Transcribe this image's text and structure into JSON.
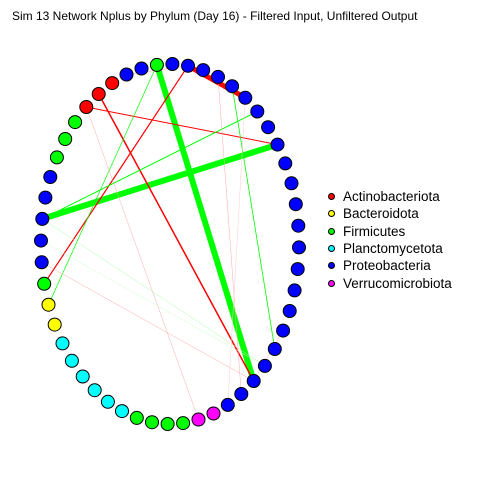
{
  "title": "Sim 13 Network Nplus by Phylum (Day 16) - Filtered Input, Unfiltered Output",
  "colors": {
    "Actinobacteriota": "#ff0000",
    "Bacteroidota": "#ffff00",
    "Firmicutes": "#00ff00",
    "Planctomycetota": "#00ffff",
    "Proteobacteria": "#0000ff",
    "Verrucomicrobiota": "#ff00ff"
  },
  "legend": [
    {
      "label": "Actinobacteriota",
      "color": "#ff0000"
    },
    {
      "label": "Bacteroidota",
      "color": "#ffff00"
    },
    {
      "label": "Firmicutes",
      "color": "#00ff00"
    },
    {
      "label": "Planctomycetota",
      "color": "#00ffff"
    },
    {
      "label": "Proteobacteria",
      "color": "#0000ff"
    },
    {
      "label": "Verrucomicrobiota",
      "color": "#ff00ff"
    }
  ],
  "nodes": [
    "Proteobacteria",
    "Proteobacteria",
    "Proteobacteria",
    "Proteobacteria",
    "Proteobacteria",
    "Proteobacteria",
    "Proteobacteria",
    "Proteobacteria",
    "Proteobacteria",
    "Proteobacteria",
    "Proteobacteria",
    "Proteobacteria",
    "Proteobacteria",
    "Proteobacteria",
    "Proteobacteria",
    "Proteobacteria",
    "Proteobacteria",
    "Proteobacteria",
    "Proteobacteria",
    "Proteobacteria",
    "Proteobacteria",
    "Proteobacteria",
    "Verrucomicrobiota",
    "Verrucomicrobiota",
    "Firmicutes",
    "Firmicutes",
    "Firmicutes",
    "Firmicutes",
    "Planctomycetota",
    "Planctomycetota",
    "Planctomycetota",
    "Planctomycetota",
    "Planctomycetota",
    "Planctomycetota",
    "Bacteroidota",
    "Bacteroidota",
    "Firmicutes",
    "Proteobacteria",
    "Proteobacteria",
    "Proteobacteria",
    "Proteobacteria",
    "Proteobacteria",
    "Firmicutes",
    "Firmicutes",
    "Firmicutes",
    "Actinobacteriota",
    "Actinobacteriota",
    "Actinobacteriota",
    "Proteobacteria",
    "Proteobacteria",
    "Firmicutes",
    "Proteobacteria"
  ],
  "edges": [
    {
      "from": 0,
      "to": 4,
      "color": "#ff0000",
      "weight": 5
    },
    {
      "from": 50,
      "to": 19,
      "color": "#00ff00",
      "weight": 6
    },
    {
      "from": 7,
      "to": 39,
      "color": "#00ff00",
      "weight": 6
    },
    {
      "from": 46,
      "to": 19,
      "color": "#ff0000",
      "weight": 1.5
    },
    {
      "from": 0,
      "to": 36,
      "color": "#ff0000",
      "weight": 1.2
    },
    {
      "from": 7,
      "to": 45,
      "color": "#ff0000",
      "weight": 1
    },
    {
      "from": 5,
      "to": 39,
      "color": "#00ff00",
      "weight": 1
    },
    {
      "from": 3,
      "to": 17,
      "color": "#00ff00",
      "weight": 0.8
    },
    {
      "from": 50,
      "to": 35,
      "color": "#00ff00",
      "weight": 0.7
    },
    {
      "from": 0,
      "to": 48,
      "color": "#ff9999",
      "weight": 0.5
    },
    {
      "from": 45,
      "to": 23,
      "color": "#ffaaaa",
      "weight": 0.5
    },
    {
      "from": 37,
      "to": 19,
      "color": "#ffaaaa",
      "weight": 0.5
    },
    {
      "from": 39,
      "to": 18,
      "color": "#aaffaa",
      "weight": 0.5
    },
    {
      "from": 38,
      "to": 18,
      "color": "#ccffcc",
      "weight": 0.5
    },
    {
      "from": 2,
      "to": 20,
      "color": "#ffaaaa",
      "weight": 0.5
    },
    {
      "from": 4,
      "to": 21,
      "color": "#ffcccc",
      "weight": 0.5
    },
    {
      "from": 16,
      "to": 19,
      "color": "#ffaaaa",
      "weight": 0.5
    }
  ]
}
